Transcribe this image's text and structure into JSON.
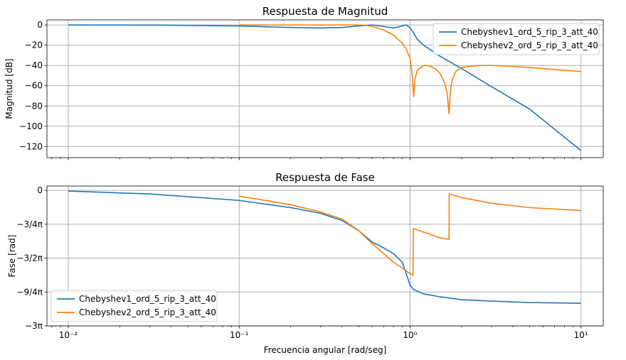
{
  "chart_data": [
    {
      "type": "line",
      "title": "Respuesta de Magnitud",
      "xlabel": "",
      "ylabel": "Magnitud [dB]",
      "xscale": "log",
      "xlim": [
        0.0075,
        13.5
      ],
      "ylim": [
        -131,
        5
      ],
      "yticks": [
        0,
        -20,
        -40,
        -60,
        -80,
        -100,
        -120
      ],
      "ytick_labels": [
        "0",
        "−20",
        "−40",
        "−60",
        "−80",
        "−100",
        "−120"
      ],
      "grid": true,
      "legend_position": "top-right",
      "series": [
        {
          "name": "Chebyshev1_ord_5_rip_3_att_40",
          "color": "#1f77b4",
          "x": [
            0.01,
            0.03,
            0.1,
            0.2,
            0.3,
            0.4,
            0.5,
            0.6,
            0.7,
            0.8,
            0.9,
            0.95,
            1.0,
            1.05,
            1.1,
            1.2,
            1.5,
            2,
            3,
            5,
            10
          ],
          "y": [
            0,
            -0.1,
            -1,
            -2.5,
            -3,
            -2.5,
            -1,
            0,
            -1.5,
            -3,
            -1,
            0,
            -3,
            -8,
            -14,
            -20,
            -31,
            -43,
            -61,
            -83,
            -124
          ]
        },
        {
          "name": "Chebyshev2_ord_5_rip_3_att_40",
          "color": "#ff7f0e",
          "x": [
            0.1,
            0.2,
            0.3,
            0.4,
            0.5,
            0.55,
            0.6,
            0.7,
            0.8,
            0.9,
            0.95,
            1.0,
            1.03,
            1.05,
            1.07,
            1.1,
            1.2,
            1.3,
            1.4,
            1.5,
            1.6,
            1.65,
            1.69,
            1.72,
            1.76,
            1.85,
            2.0,
            2.5,
            3.0,
            4.0,
            5.0,
            7.0,
            10.0
          ],
          "y": [
            0,
            0,
            0,
            0,
            0,
            -0.5,
            -1.5,
            -5,
            -10,
            -18,
            -24,
            -33,
            -50,
            -71,
            -53,
            -45,
            -40,
            -40.5,
            -43,
            -48,
            -58,
            -68,
            -88,
            -66,
            -55,
            -46,
            -42,
            -40,
            -40,
            -41,
            -42,
            -44,
            -46
          ]
        }
      ]
    },
    {
      "type": "line",
      "title": "Respuesta de Fase",
      "xlabel": "Frecuencia angular [rad/seg]",
      "ylabel": "Fase [rad]",
      "xscale": "log",
      "xlim": [
        0.0075,
        13.5
      ],
      "ylim": [
        -9.4248,
        0.3
      ],
      "yticks": [
        0,
        -2.3562,
        -4.7124,
        -7.0686,
        -9.4248
      ],
      "ytick_labels": [
        "0",
        "−3/4π",
        "−3/2π",
        "−9/4π",
        "−3π"
      ],
      "xticks": [
        0.01,
        0.1,
        1,
        10
      ],
      "xtick_labels": [
        "10⁻²",
        "10⁻¹",
        "10⁰",
        "10¹"
      ],
      "grid": true,
      "legend_position": "bottom-left",
      "series": [
        {
          "name": "Chebyshev1_ord_5_rip_3_att_40",
          "color": "#1f77b4",
          "x": [
            0.01,
            0.03,
            0.1,
            0.2,
            0.3,
            0.4,
            0.5,
            0.6,
            0.7,
            0.8,
            0.9,
            0.95,
            1.0,
            1.05,
            1.1,
            1.2,
            1.5,
            2,
            3,
            5,
            10
          ],
          "y": [
            -0.05,
            -0.25,
            -0.7,
            -1.2,
            -1.6,
            -2.1,
            -2.8,
            -3.6,
            -4.0,
            -4.4,
            -5.0,
            -5.8,
            -6.6,
            -6.9,
            -7.0,
            -7.2,
            -7.4,
            -7.6,
            -7.7,
            -7.8,
            -7.85
          ]
        },
        {
          "name": "Chebyshev2_ord_5_rip_3_att_40",
          "color": "#ff7f0e",
          "x": [
            0.1,
            0.2,
            0.3,
            0.4,
            0.5,
            0.6,
            0.7,
            0.8,
            0.9,
            1.0,
            1.04,
            1.045,
            1.2,
            1.5,
            1.69,
            1.695,
            2,
            3,
            5,
            10
          ],
          "y": [
            -0.4,
            -1.0,
            -1.5,
            -2.0,
            -2.8,
            -3.7,
            -4.4,
            -5.0,
            -5.4,
            -5.8,
            -5.9,
            -2.65,
            -2.9,
            -3.3,
            -3.4,
            -0.25,
            -0.5,
            -0.9,
            -1.2,
            -1.4
          ]
        }
      ]
    }
  ]
}
